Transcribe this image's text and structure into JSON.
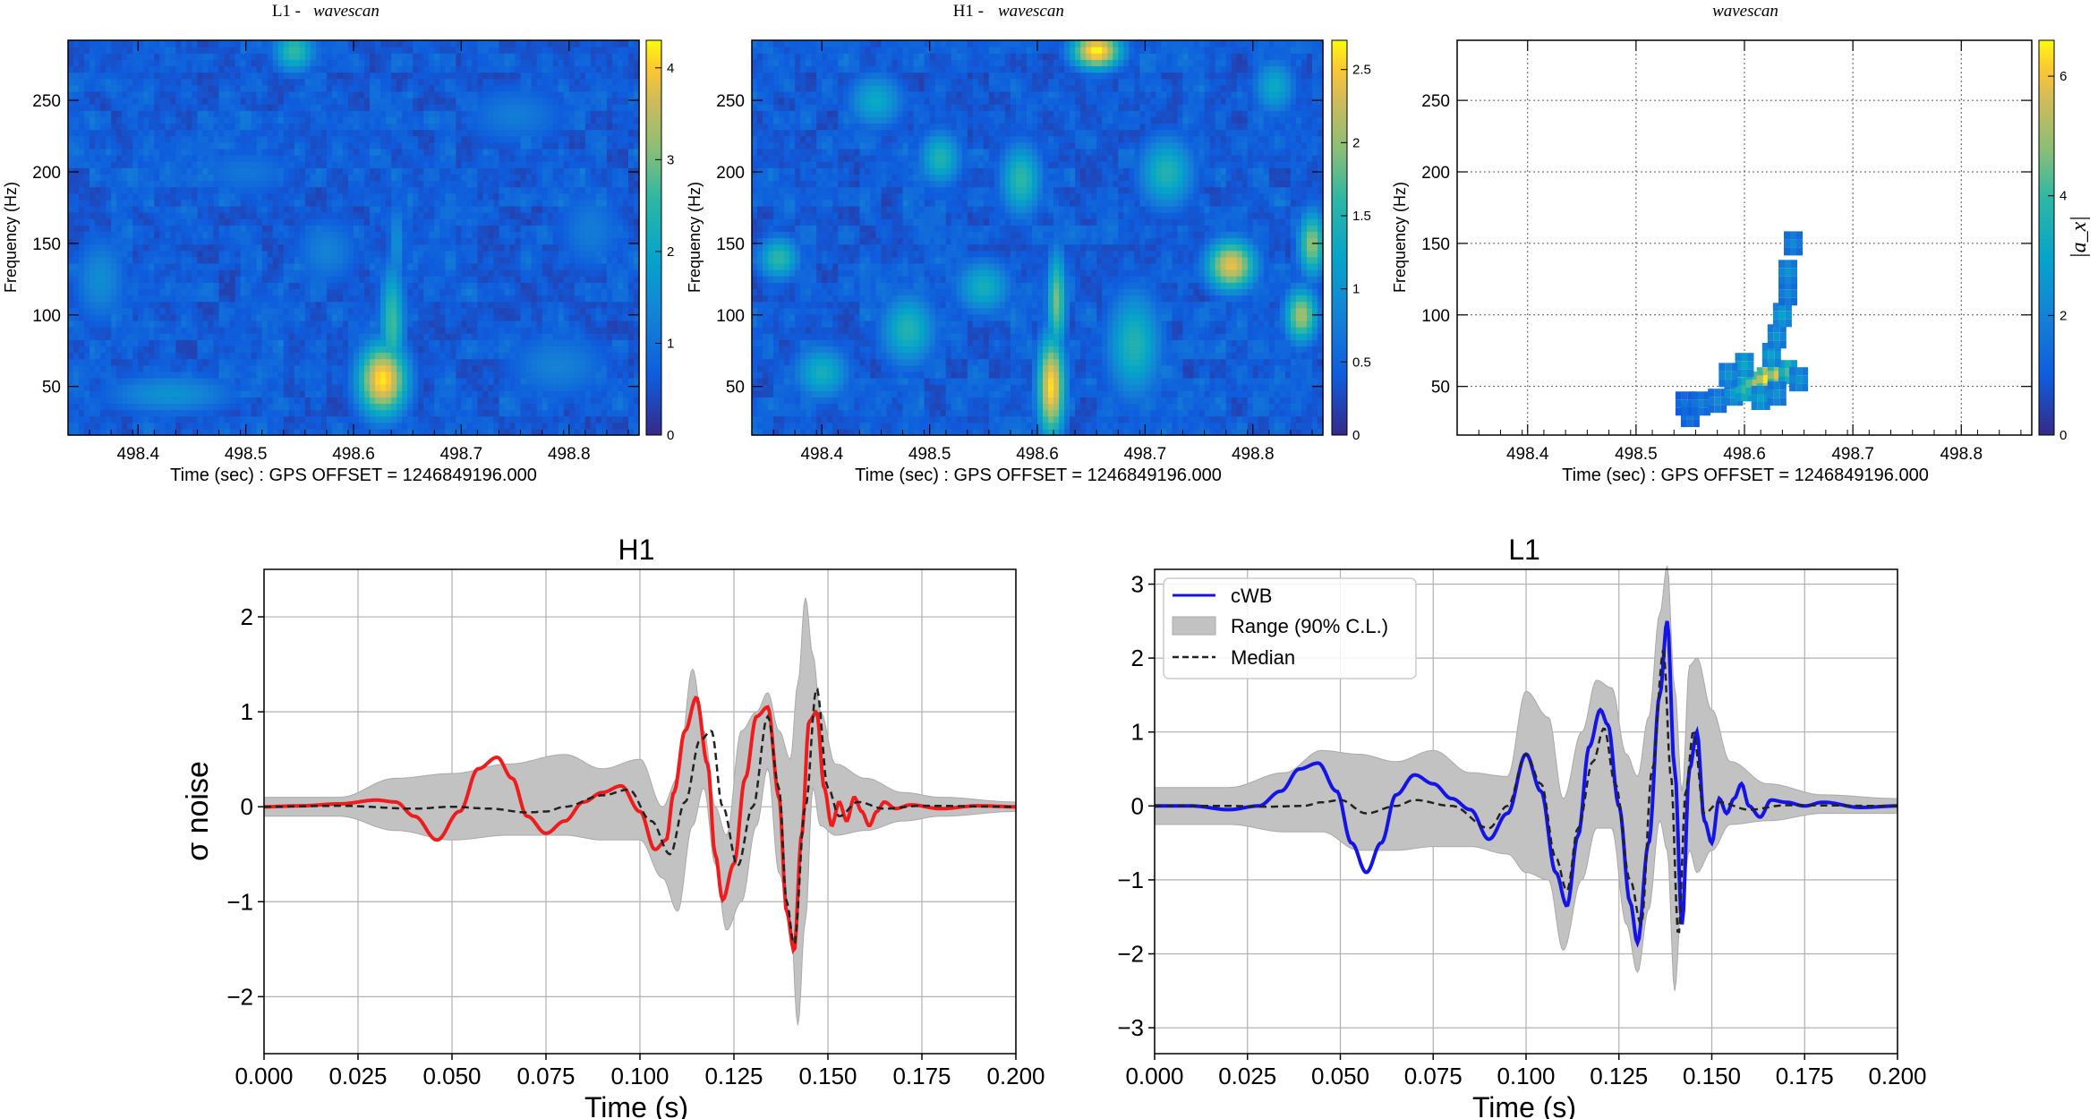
{
  "colors": {
    "h1_trace": "#ee1c1c",
    "l1_trace": "#1414e6",
    "band": "#c2c2c2",
    "median": "#222222",
    "grid": "#b0b0b0"
  },
  "chart_data": [
    {
      "type": "heatmap",
      "id": "l1_wavescan",
      "title_prefix": "L1 -",
      "title_em": "wavescan",
      "xlabel": "Time (sec) : GPS OFFSET = 1246849196.000",
      "ylabel": "Frequency (Hz)",
      "xlim": [
        498.335,
        498.865
      ],
      "ylim": [
        16,
        292
      ],
      "xticks": [
        "498.4",
        "498.5",
        "498.6",
        "498.7",
        "498.8"
      ],
      "xtick_values": [
        498.4,
        498.5,
        498.6,
        498.7,
        498.8
      ],
      "yticks": [
        "50",
        "100",
        "150",
        "200",
        "250"
      ],
      "ytick_values": [
        50,
        100,
        150,
        200,
        250
      ],
      "colorbar_ticks": [
        "0",
        "1",
        "2",
        "3",
        "4"
      ],
      "colorbar_values": [
        0,
        1,
        2,
        3,
        4
      ],
      "colorbar_max": 4.3,
      "blobs": [
        {
          "t": 498.627,
          "f": 55,
          "sx": 0.018,
          "sf": 20,
          "v": 4.2
        },
        {
          "t": 498.636,
          "f": 95,
          "sx": 0.009,
          "sf": 32,
          "v": 2.7
        },
        {
          "t": 498.64,
          "f": 150,
          "sx": 0.006,
          "sf": 25,
          "v": 1.6
        },
        {
          "t": 498.545,
          "f": 285,
          "sx": 0.015,
          "sf": 12,
          "v": 2.6
        },
        {
          "t": 498.43,
          "f": 45,
          "sx": 0.05,
          "sf": 12,
          "v": 1.6
        },
        {
          "t": 498.365,
          "f": 125,
          "sx": 0.02,
          "sf": 25,
          "v": 1.5
        },
        {
          "t": 498.575,
          "f": 145,
          "sx": 0.025,
          "sf": 20,
          "v": 1.3
        },
        {
          "t": 498.75,
          "f": 240,
          "sx": 0.04,
          "sf": 18,
          "v": 1.2
        },
        {
          "t": 498.79,
          "f": 65,
          "sx": 0.04,
          "sf": 20,
          "v": 1.3
        },
        {
          "t": 498.5,
          "f": 200,
          "sx": 0.04,
          "sf": 15,
          "v": 1.1
        },
        {
          "t": 498.82,
          "f": 160,
          "sx": 0.025,
          "sf": 25,
          "v": 1.2
        }
      ]
    },
    {
      "type": "heatmap",
      "id": "h1_wavescan",
      "title_prefix": "H1 -",
      "title_em": "wavescan",
      "xlabel": "Time (sec) : GPS OFFSET = 1246849196.000",
      "ylabel": "Frequency (Hz)",
      "xlim": [
        498.335,
        498.865
      ],
      "ylim": [
        16,
        292
      ],
      "xticks": [
        "498.4",
        "498.5",
        "498.6",
        "498.7",
        "498.8"
      ],
      "xtick_values": [
        498.4,
        498.5,
        498.6,
        498.7,
        498.8
      ],
      "yticks": [
        "50",
        "100",
        "150",
        "200",
        "250"
      ],
      "ytick_values": [
        50,
        100,
        150,
        200,
        250
      ],
      "colorbar_ticks": [
        "0",
        "0.5",
        "1",
        "1.5",
        "2",
        "2.5"
      ],
      "colorbar_values": [
        0,
        0.5,
        1,
        1.5,
        2,
        2.5
      ],
      "colorbar_max": 2.7,
      "blobs": [
        {
          "t": 498.613,
          "f": 50,
          "sx": 0.01,
          "sf": 28,
          "v": 2.6
        },
        {
          "t": 498.618,
          "f": 110,
          "sx": 0.007,
          "sf": 28,
          "v": 1.9
        },
        {
          "t": 498.655,
          "f": 285,
          "sx": 0.018,
          "sf": 10,
          "v": 2.7
        },
        {
          "t": 498.78,
          "f": 135,
          "sx": 0.018,
          "sf": 14,
          "v": 2.4
        },
        {
          "t": 498.845,
          "f": 100,
          "sx": 0.012,
          "sf": 15,
          "v": 2.1
        },
        {
          "t": 498.855,
          "f": 150,
          "sx": 0.01,
          "sf": 18,
          "v": 2.0
        },
        {
          "t": 498.585,
          "f": 195,
          "sx": 0.015,
          "sf": 20,
          "v": 1.6
        },
        {
          "t": 498.51,
          "f": 210,
          "sx": 0.015,
          "sf": 15,
          "v": 1.5
        },
        {
          "t": 498.48,
          "f": 90,
          "sx": 0.02,
          "sf": 20,
          "v": 1.5
        },
        {
          "t": 498.36,
          "f": 140,
          "sx": 0.015,
          "sf": 12,
          "v": 1.6
        },
        {
          "t": 498.4,
          "f": 60,
          "sx": 0.02,
          "sf": 15,
          "v": 1.4
        },
        {
          "t": 498.69,
          "f": 80,
          "sx": 0.02,
          "sf": 30,
          "v": 1.5
        },
        {
          "t": 498.72,
          "f": 200,
          "sx": 0.02,
          "sf": 20,
          "v": 1.5
        },
        {
          "t": 498.82,
          "f": 260,
          "sx": 0.015,
          "sf": 15,
          "v": 1.3
        },
        {
          "t": 498.45,
          "f": 250,
          "sx": 0.02,
          "sf": 15,
          "v": 1.3
        },
        {
          "t": 498.55,
          "f": 120,
          "sx": 0.02,
          "sf": 15,
          "v": 1.4
        }
      ]
    },
    {
      "type": "heatmap",
      "id": "likelihood_wavescan",
      "title_prefix": "",
      "title_em": "wavescan",
      "xlabel": "Time (sec) : GPS OFFSET = 1246849196.000",
      "ylabel": "Frequency (Hz)",
      "colorbar_label": "|a_x|",
      "xlim": [
        498.335,
        498.865
      ],
      "ylim": [
        16,
        292
      ],
      "xticks": [
        "498.4",
        "498.5",
        "498.6",
        "498.7",
        "498.8"
      ],
      "xtick_values": [
        498.4,
        498.5,
        498.6,
        498.7,
        498.8
      ],
      "yticks": [
        "50",
        "100",
        "150",
        "200",
        "250"
      ],
      "ytick_values": [
        50,
        100,
        150,
        200,
        250
      ],
      "colorbar_ticks": [
        "0",
        "2",
        "4",
        "6"
      ],
      "colorbar_values": [
        0,
        2,
        4,
        6
      ],
      "colorbar_max": 6.6,
      "grid": true,
      "pixels": [
        {
          "t": 498.55,
          "f": 30,
          "v": 1.8
        },
        {
          "t": 498.545,
          "f": 38,
          "v": 1.6
        },
        {
          "t": 498.56,
          "f": 38,
          "v": 2.0
        },
        {
          "t": 498.575,
          "f": 40,
          "v": 2.2
        },
        {
          "t": 498.59,
          "f": 45,
          "v": 2.8
        },
        {
          "t": 498.6,
          "f": 48,
          "v": 4.0
        },
        {
          "t": 498.61,
          "f": 52,
          "v": 5.2
        },
        {
          "t": 498.62,
          "f": 55,
          "v": 6.4
        },
        {
          "t": 498.63,
          "f": 58,
          "v": 5.8
        },
        {
          "t": 498.64,
          "f": 60,
          "v": 4.2
        },
        {
          "t": 498.65,
          "f": 55,
          "v": 2.6
        },
        {
          "t": 498.625,
          "f": 72,
          "v": 3.0
        },
        {
          "t": 498.63,
          "f": 85,
          "v": 2.6
        },
        {
          "t": 498.635,
          "f": 100,
          "v": 3.0
        },
        {
          "t": 498.64,
          "f": 115,
          "v": 2.2
        },
        {
          "t": 498.64,
          "f": 130,
          "v": 2.6
        },
        {
          "t": 498.645,
          "f": 150,
          "v": 2.2
        },
        {
          "t": 498.6,
          "f": 65,
          "v": 3.2
        },
        {
          "t": 498.585,
          "f": 58,
          "v": 2.6
        },
        {
          "t": 498.615,
          "f": 42,
          "v": 3.0
        },
        {
          "t": 498.63,
          "f": 45,
          "v": 2.5
        }
      ]
    },
    {
      "type": "line",
      "id": "h1_waveform",
      "title": "H1",
      "xlabel": "Time (s)",
      "ylabel": "σ noise",
      "xlim": [
        0.0,
        0.2
      ],
      "ylim": [
        -2.6,
        2.5
      ],
      "xticks": [
        "0.000",
        "0.025",
        "0.050",
        "0.075",
        "0.100",
        "0.125",
        "0.150",
        "0.175",
        "0.200"
      ],
      "xtick_values": [
        0,
        0.025,
        0.05,
        0.075,
        0.1,
        0.125,
        0.15,
        0.175,
        0.2
      ],
      "yticks": [
        "−2",
        "−1",
        "0",
        "1",
        "2"
      ],
      "ytick_values": [
        -2,
        -1,
        0,
        1,
        2
      ],
      "series": [
        {
          "name": "cWB",
          "style": "red-solid",
          "x": [
            0,
            0.01,
            0.02,
            0.03,
            0.035,
            0.04,
            0.046,
            0.052,
            0.057,
            0.062,
            0.066,
            0.07,
            0.075,
            0.08,
            0.085,
            0.09,
            0.095,
            0.1,
            0.104,
            0.107,
            0.109,
            0.112,
            0.115,
            0.118,
            0.12,
            0.122,
            0.125,
            0.128,
            0.131,
            0.134,
            0.137,
            0.139,
            0.141,
            0.143,
            0.145,
            0.147,
            0.149,
            0.151,
            0.153,
            0.155,
            0.157,
            0.159,
            0.161,
            0.163,
            0.165,
            0.168,
            0.172,
            0.18,
            0.19,
            0.2
          ],
          "y": [
            0.0,
            0.01,
            0.03,
            0.07,
            0.05,
            -0.1,
            -0.35,
            -0.05,
            0.4,
            0.52,
            0.3,
            -0.1,
            -0.28,
            -0.15,
            0.05,
            0.15,
            0.22,
            -0.05,
            -0.45,
            -0.35,
            0.15,
            0.8,
            1.15,
            0.45,
            -0.5,
            -0.98,
            -0.6,
            0.3,
            0.95,
            1.05,
            0.1,
            -1.1,
            -1.52,
            -0.3,
            0.9,
            1.0,
            0.2,
            -0.2,
            0.05,
            -0.15,
            0.1,
            -0.05,
            -0.2,
            -0.05,
            0.05,
            -0.02,
            0.02,
            -0.02,
            0.01,
            0.0
          ]
        },
        {
          "name": "Median",
          "style": "black-dashed",
          "x": [
            0,
            0.02,
            0.04,
            0.05,
            0.06,
            0.07,
            0.075,
            0.08,
            0.09,
            0.097,
            0.103,
            0.108,
            0.112,
            0.116,
            0.119,
            0.122,
            0.126,
            0.13,
            0.134,
            0.137,
            0.139,
            0.141,
            0.144,
            0.147,
            0.15,
            0.153,
            0.158,
            0.165,
            0.175,
            0.2
          ],
          "y": [
            0.0,
            0.01,
            -0.02,
            0.0,
            -0.02,
            -0.06,
            -0.05,
            0.0,
            0.12,
            0.18,
            -0.15,
            -0.5,
            0.05,
            0.7,
            0.8,
            0.0,
            -0.62,
            0.0,
            0.95,
            0.2,
            -1.0,
            -1.45,
            0.0,
            1.25,
            0.2,
            -0.1,
            0.05,
            -0.02,
            0.01,
            0.0
          ]
        },
        {
          "name": "Range (90% C.L.)",
          "style": "gray-band",
          "x": [
            0,
            0.02,
            0.035,
            0.05,
            0.065,
            0.08,
            0.09,
            0.1,
            0.106,
            0.11,
            0.114,
            0.117,
            0.12,
            0.123,
            0.127,
            0.131,
            0.134,
            0.137,
            0.14,
            0.142,
            0.144,
            0.146,
            0.148,
            0.152,
            0.16,
            0.17,
            0.18,
            0.2
          ],
          "upper": [
            0.1,
            0.1,
            0.3,
            0.35,
            0.45,
            0.55,
            0.4,
            0.5,
            0.0,
            0.3,
            1.45,
            0.8,
            0.0,
            -0.3,
            0.8,
            1.0,
            1.2,
            0.8,
            0.5,
            1.3,
            2.2,
            1.6,
            1.0,
            0.45,
            0.3,
            0.15,
            0.1,
            0.05
          ],
          "lower": [
            -0.1,
            -0.1,
            -0.25,
            -0.35,
            -0.3,
            -0.3,
            -0.35,
            -0.35,
            -0.75,
            -1.1,
            -0.2,
            0.2,
            -0.6,
            -1.3,
            -1.0,
            -0.2,
            0.4,
            -0.7,
            -1.2,
            -2.3,
            -1.2,
            0.2,
            -0.2,
            -0.3,
            -0.25,
            -0.15,
            -0.1,
            -0.05
          ]
        }
      ]
    },
    {
      "type": "line",
      "id": "l1_waveform",
      "title": "L1",
      "xlabel": "Time (s)",
      "ylabel": "",
      "xlim": [
        0.0,
        0.2
      ],
      "ylim": [
        -3.35,
        3.2
      ],
      "xticks": [
        "0.000",
        "0.025",
        "0.050",
        "0.075",
        "0.100",
        "0.125",
        "0.150",
        "0.175",
        "0.200"
      ],
      "xtick_values": [
        0,
        0.025,
        0.05,
        0.075,
        0.1,
        0.125,
        0.15,
        0.175,
        0.2
      ],
      "yticks": [
        "−3",
        "−2",
        "−1",
        "0",
        "1",
        "2",
        "3"
      ],
      "ytick_values": [
        -3,
        -2,
        -1,
        0,
        1,
        2,
        3
      ],
      "legend_location": "upper-left",
      "legend": [
        "cWB",
        "Range (90% C.L.)",
        "Median"
      ],
      "series": [
        {
          "name": "cWB",
          "style": "blue-solid",
          "x": [
            0,
            0.01,
            0.02,
            0.028,
            0.034,
            0.039,
            0.044,
            0.049,
            0.053,
            0.057,
            0.061,
            0.065,
            0.07,
            0.075,
            0.08,
            0.085,
            0.09,
            0.095,
            0.1,
            0.104,
            0.108,
            0.111,
            0.114,
            0.117,
            0.12,
            0.122,
            0.125,
            0.128,
            0.13,
            0.133,
            0.136,
            0.138,
            0.14,
            0.142,
            0.144,
            0.146,
            0.148,
            0.15,
            0.152,
            0.154,
            0.156,
            0.158,
            0.16,
            0.163,
            0.166,
            0.17,
            0.175,
            0.18,
            0.19,
            0.2
          ],
          "y": [
            0.0,
            0.0,
            -0.05,
            0.0,
            0.2,
            0.5,
            0.58,
            0.2,
            -0.5,
            -0.9,
            -0.5,
            0.15,
            0.42,
            0.3,
            0.1,
            -0.05,
            -0.45,
            -0.1,
            0.7,
            0.2,
            -0.9,
            -1.35,
            -0.4,
            0.8,
            1.3,
            1.1,
            0.0,
            -1.3,
            -1.85,
            -0.5,
            1.5,
            2.5,
            0.5,
            -1.6,
            0.5,
            1.0,
            -0.2,
            -0.5,
            0.1,
            -0.1,
            0.1,
            0.3,
            0.0,
            -0.15,
            0.08,
            0.05,
            0.0,
            0.05,
            -0.02,
            0.0
          ]
        },
        {
          "name": "Median",
          "style": "black-dashed",
          "x": [
            0,
            0.02,
            0.03,
            0.04,
            0.045,
            0.05,
            0.057,
            0.065,
            0.07,
            0.08,
            0.09,
            0.095,
            0.1,
            0.104,
            0.108,
            0.111,
            0.114,
            0.118,
            0.121,
            0.124,
            0.128,
            0.131,
            0.134,
            0.137,
            0.139,
            0.141,
            0.143,
            0.145,
            0.148,
            0.152,
            0.16,
            0.17,
            0.2
          ],
          "y": [
            0.0,
            0.0,
            -0.01,
            0.0,
            0.05,
            0.08,
            -0.1,
            0.0,
            0.08,
            0.0,
            -0.3,
            0.0,
            0.7,
            0.3,
            -0.7,
            -1.15,
            -0.3,
            0.6,
            1.05,
            0.3,
            -1.0,
            -1.6,
            0.5,
            2.1,
            0.4,
            -1.75,
            0.2,
            1.0,
            -0.1,
            0.05,
            -0.05,
            0.01,
            0.0
          ]
        },
        {
          "name": "Range (90% C.L.)",
          "style": "gray-band",
          "x": [
            0,
            0.02,
            0.035,
            0.045,
            0.055,
            0.065,
            0.075,
            0.085,
            0.095,
            0.1,
            0.106,
            0.11,
            0.115,
            0.119,
            0.123,
            0.127,
            0.13,
            0.133,
            0.136,
            0.138,
            0.14,
            0.142,
            0.144,
            0.146,
            0.15,
            0.155,
            0.165,
            0.18,
            0.2
          ],
          "upper": [
            0.25,
            0.25,
            0.45,
            0.75,
            0.7,
            0.6,
            0.75,
            0.45,
            0.4,
            1.55,
            1.2,
            0.1,
            1.0,
            1.7,
            1.6,
            0.7,
            0.4,
            1.2,
            2.6,
            3.25,
            1.6,
            0.2,
            1.9,
            2.0,
            1.3,
            0.6,
            0.3,
            0.15,
            0.1
          ],
          "lower": [
            -0.25,
            -0.25,
            -0.35,
            -0.35,
            -0.6,
            -0.6,
            -0.55,
            -0.55,
            -0.65,
            -0.9,
            -1.0,
            -1.95,
            -1.0,
            -0.3,
            -0.3,
            -1.6,
            -2.25,
            -1.4,
            -0.2,
            -0.6,
            -2.5,
            -1.2,
            -0.6,
            -0.9,
            -0.6,
            -0.25,
            -0.2,
            -0.1,
            -0.1
          ]
        }
      ]
    }
  ]
}
